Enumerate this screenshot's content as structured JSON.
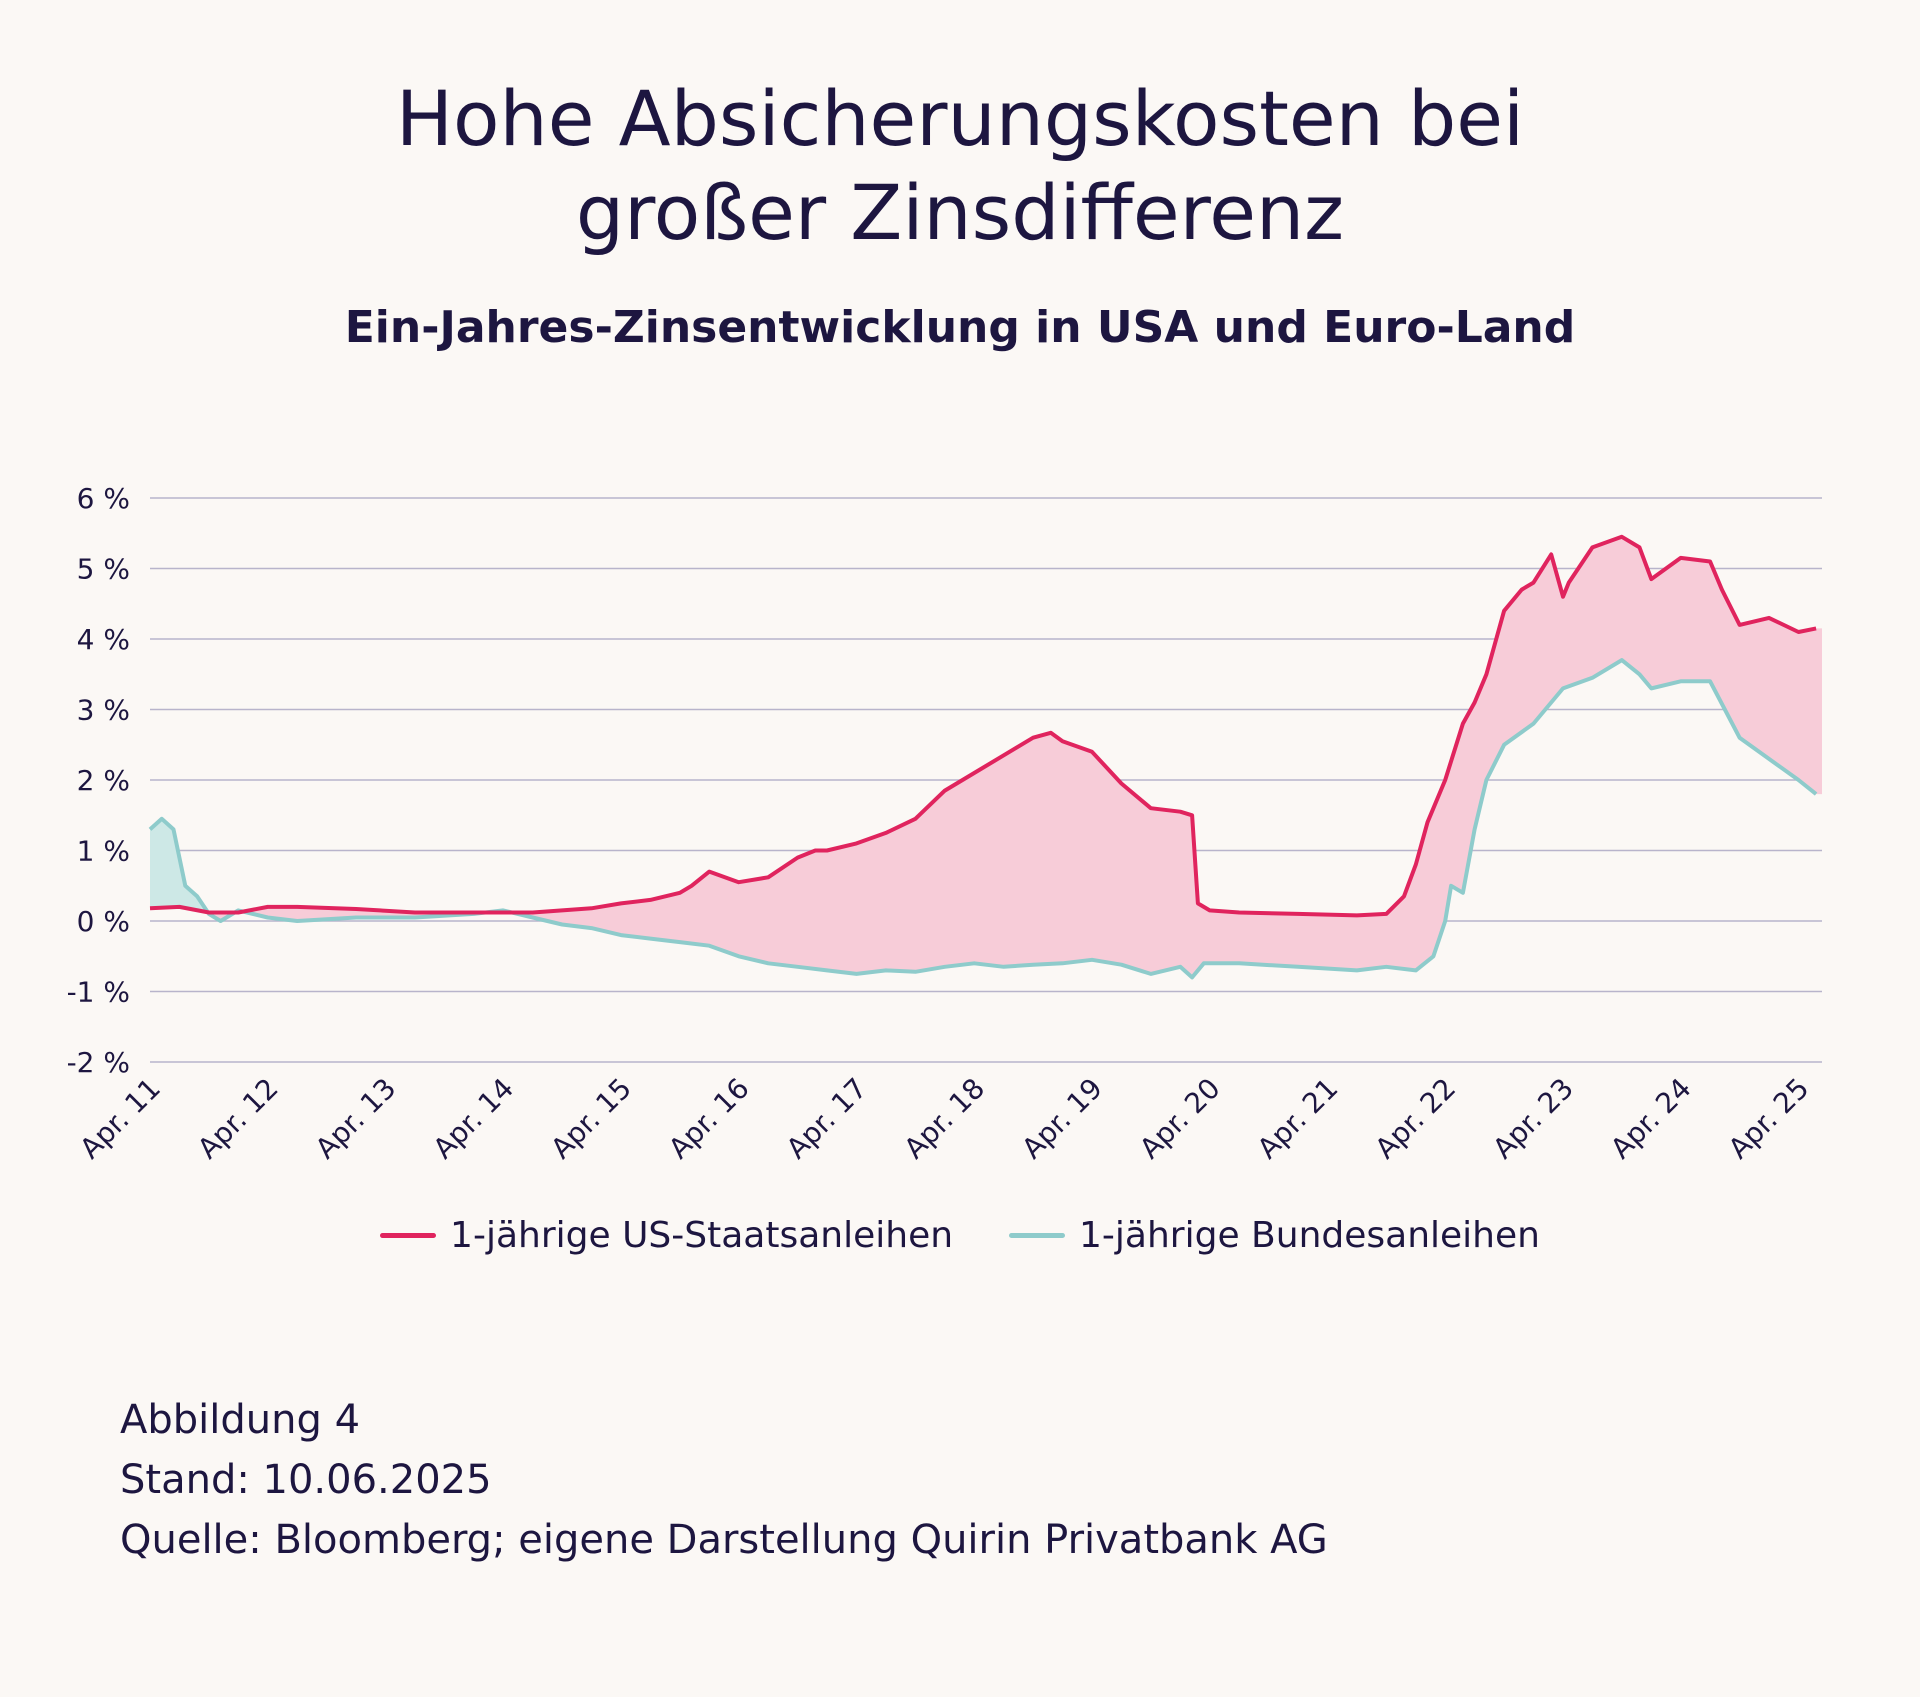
{
  "header": {
    "title_line1": "Hohe Absicherungskosten bei",
    "title_line2": "großer Zinsdifferenz",
    "subtitle": "Ein-Jahres-Zinsentwicklung in USA und Euro-Land"
  },
  "chart_data": {
    "type": "line",
    "title": "Hohe Absicherungskosten bei großer Zinsdifferenz",
    "subtitle": "Ein-Jahres-Zinsentwicklung in USA und Euro-Land",
    "ylim": [
      -2,
      6
    ],
    "yticks": [
      6,
      5,
      4,
      3,
      2,
      1,
      0,
      -1,
      -2
    ],
    "ytick_labels": [
      "6 %",
      "5 %",
      "4 %",
      "3 %",
      "2 %",
      "1 %",
      "0 %",
      "-1 %",
      "-2 %"
    ],
    "xlim": [
      2011.25,
      2025.45
    ],
    "xticks": [
      2011.25,
      2012.25,
      2013.25,
      2014.25,
      2015.25,
      2016.25,
      2017.25,
      2018.25,
      2019.25,
      2020.25,
      2021.25,
      2022.25,
      2023.25,
      2024.25,
      2025.25
    ],
    "xtick_labels": [
      "Apr. 11",
      "Apr. 12",
      "Apr. 13",
      "Apr. 14",
      "Apr. 15",
      "Apr. 16",
      "Apr. 17",
      "Apr. 18",
      "Apr. 19",
      "Apr. 20",
      "Apr. 21",
      "Apr. 22",
      "Apr. 23",
      "Apr. 24",
      "Apr. 25"
    ],
    "grid": true,
    "legend_position": "bottom",
    "fill_between": true,
    "colors": {
      "us": "#e0245e",
      "de": "#8ecbcb",
      "fill_us_above": "#f7ccd8",
      "fill_de_above": "#cde8e6",
      "grid": "#b8b4cb"
    },
    "series": [
      {
        "name": "1-jährige US-Staatsanleihen",
        "x": [
          2011.25,
          2011.5,
          2011.75,
          2012.0,
          2012.25,
          2012.5,
          2013.0,
          2013.5,
          2014.0,
          2014.5,
          2015.0,
          2015.25,
          2015.5,
          2015.75,
          2015.85,
          2016.0,
          2016.25,
          2016.5,
          2016.75,
          2016.9,
          2017.0,
          2017.25,
          2017.5,
          2017.75,
          2018.0,
          2018.25,
          2018.5,
          2018.75,
          2018.9,
          2019.0,
          2019.25,
          2019.5,
          2019.75,
          2020.0,
          2020.1,
          2020.15,
          2020.25,
          2020.5,
          2021.0,
          2021.5,
          2021.75,
          2021.9,
          2022.0,
          2022.1,
          2022.25,
          2022.4,
          2022.5,
          2022.6,
          2022.75,
          2022.9,
          2023.0,
          2023.15,
          2023.25,
          2023.3,
          2023.5,
          2023.75,
          2023.9,
          2024.0,
          2024.25,
          2024.5,
          2024.6,
          2024.75,
          2025.0,
          2025.25,
          2025.4
        ],
        "values": [
          0.18,
          0.2,
          0.12,
          0.12,
          0.2,
          0.2,
          0.17,
          0.12,
          0.12,
          0.12,
          0.18,
          0.25,
          0.3,
          0.4,
          0.5,
          0.7,
          0.55,
          0.62,
          0.9,
          1.0,
          1.0,
          1.1,
          1.25,
          1.45,
          1.85,
          2.1,
          2.35,
          2.6,
          2.67,
          2.55,
          2.4,
          1.95,
          1.6,
          1.55,
          1.5,
          0.25,
          0.15,
          0.12,
          0.1,
          0.08,
          0.1,
          0.35,
          0.8,
          1.4,
          2.0,
          2.8,
          3.1,
          3.5,
          4.4,
          4.7,
          4.8,
          5.2,
          4.6,
          4.8,
          5.3,
          5.45,
          5.3,
          4.85,
          5.15,
          5.1,
          4.7,
          4.2,
          4.3,
          4.1,
          4.15
        ]
      },
      {
        "name": "1-jährige Bundesanleihen",
        "x": [
          2011.25,
          2011.35,
          2011.45,
          2011.55,
          2011.65,
          2011.75,
          2011.85,
          2012.0,
          2012.25,
          2012.5,
          2013.0,
          2013.5,
          2014.0,
          2014.25,
          2014.5,
          2014.75,
          2015.0,
          2015.25,
          2015.5,
          2015.75,
          2016.0,
          2016.25,
          2016.5,
          2016.75,
          2017.0,
          2017.25,
          2017.5,
          2017.75,
          2018.0,
          2018.25,
          2018.5,
          2018.75,
          2019.0,
          2019.25,
          2019.5,
          2019.75,
          2020.0,
          2020.1,
          2020.2,
          2020.5,
          2021.0,
          2021.5,
          2021.75,
          2022.0,
          2022.15,
          2022.25,
          2022.3,
          2022.4,
          2022.5,
          2022.6,
          2022.75,
          2023.0,
          2023.25,
          2023.5,
          2023.75,
          2023.9,
          2024.0,
          2024.25,
          2024.5,
          2024.75,
          2025.0,
          2025.25,
          2025.4
        ],
        "values": [
          1.3,
          1.45,
          1.3,
          0.5,
          0.35,
          0.1,
          0.0,
          0.15,
          0.05,
          0.0,
          0.05,
          0.05,
          0.1,
          0.15,
          0.05,
          -0.05,
          -0.1,
          -0.2,
          -0.25,
          -0.3,
          -0.35,
          -0.5,
          -0.6,
          -0.65,
          -0.7,
          -0.75,
          -0.7,
          -0.72,
          -0.65,
          -0.6,
          -0.65,
          -0.62,
          -0.6,
          -0.55,
          -0.62,
          -0.75,
          -0.65,
          -0.8,
          -0.6,
          -0.6,
          -0.65,
          -0.7,
          -0.65,
          -0.7,
          -0.5,
          0.0,
          0.5,
          0.4,
          1.3,
          2.0,
          2.5,
          2.8,
          3.3,
          3.45,
          3.7,
          3.5,
          3.3,
          3.4,
          3.4,
          2.6,
          2.3,
          2.0,
          1.8
        ]
      }
    ]
  },
  "legend": [
    {
      "label": "1-jährige US-Staatsanleihen",
      "color": "#e0245e"
    },
    {
      "label": "1-jährige Bundesanleihen",
      "color": "#8ecbcb"
    }
  ],
  "footer": {
    "figure": "Abbildung 4",
    "date": "Stand: 10.06.2025",
    "source": "Quelle: Bloomberg; eigene Darstellung Quirin Privatbank AG"
  }
}
